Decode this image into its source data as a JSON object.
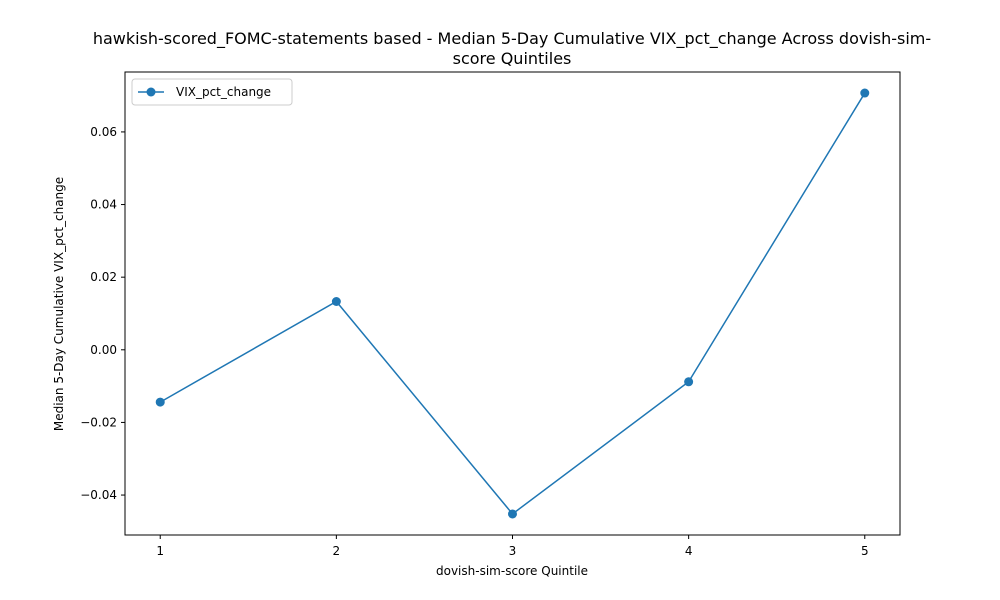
{
  "chart_data": {
    "type": "line",
    "title_lines": [
      "hawkish-scored_FOMC-statements based - Median 5-Day Cumulative VIX_pct_change Across dovish-sim-",
      "score Quintiles"
    ],
    "xlabel": "dovish-sim-score Quintile",
    "ylabel": "Median 5-Day Cumulative VIX_pct_change",
    "x": [
      1,
      2,
      3,
      4,
      5
    ],
    "x_ticks": [
      "1",
      "2",
      "3",
      "4",
      "5"
    ],
    "series": [
      {
        "name": "VIX_pct_change",
        "values": [
          -0.0144,
          0.0133,
          -0.0452,
          -0.0088,
          0.0707
        ],
        "color": "#1f77b4",
        "marker": "circle"
      }
    ],
    "y_ticks": [
      -0.04,
      -0.02,
      0.0,
      0.02,
      0.04,
      0.06
    ],
    "y_tick_labels": [
      "−0.04",
      "−0.02",
      "0.00",
      "0.02",
      "0.04",
      "0.06"
    ],
    "xlim": [
      0.8,
      5.2
    ],
    "ylim": [
      -0.051,
      0.0765
    ],
    "grid": false,
    "legend_position": "upper left"
  }
}
